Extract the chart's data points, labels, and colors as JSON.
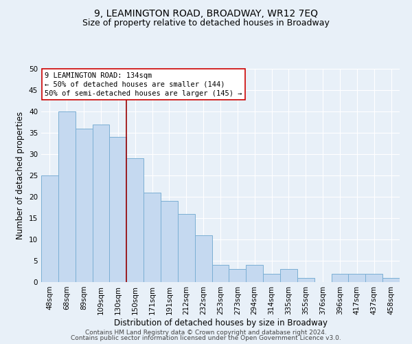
{
  "title": "9, LEAMINGTON ROAD, BROADWAY, WR12 7EQ",
  "subtitle": "Size of property relative to detached houses in Broadway",
  "xlabel": "Distribution of detached houses by size in Broadway",
  "ylabel": "Number of detached properties",
  "categories": [
    "48sqm",
    "68sqm",
    "89sqm",
    "109sqm",
    "130sqm",
    "150sqm",
    "171sqm",
    "191sqm",
    "212sqm",
    "232sqm",
    "253sqm",
    "273sqm",
    "294sqm",
    "314sqm",
    "335sqm",
    "355sqm",
    "376sqm",
    "396sqm",
    "417sqm",
    "437sqm",
    "458sqm"
  ],
  "values": [
    25,
    40,
    36,
    37,
    34,
    29,
    21,
    19,
    16,
    11,
    4,
    3,
    4,
    2,
    3,
    1,
    0,
    2,
    2,
    2,
    1
  ],
  "bar_color": "#c5d9f0",
  "bar_edge_color": "#7bafd4",
  "background_color": "#e8f0f8",
  "grid_color": "#ffffff",
  "vline_color": "#990000",
  "vline_x_index": 4,
  "annotation_text": "9 LEAMINGTON ROAD: 134sqm\n← 50% of detached houses are smaller (144)\n50% of semi-detached houses are larger (145) →",
  "annotation_box_facecolor": "#ffffff",
  "annotation_box_edgecolor": "#cc0000",
  "ylim": [
    0,
    50
  ],
  "yticks": [
    0,
    5,
    10,
    15,
    20,
    25,
    30,
    35,
    40,
    45,
    50
  ],
  "footer_line1": "Contains HM Land Registry data © Crown copyright and database right 2024.",
  "footer_line2": "Contains public sector information licensed under the Open Government Licence v3.0.",
  "title_fontsize": 10,
  "subtitle_fontsize": 9,
  "xlabel_fontsize": 8.5,
  "ylabel_fontsize": 8.5,
  "tick_fontsize": 7.5,
  "annotation_fontsize": 7.5,
  "footer_fontsize": 6.5
}
